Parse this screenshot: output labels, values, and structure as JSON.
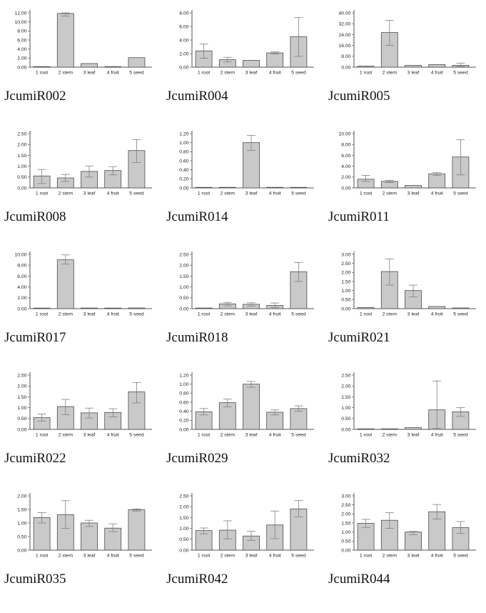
{
  "page": {
    "background": "#ffffff"
  },
  "colors": {
    "bar_fill": "#c9c9c9",
    "bar_border": "#4d4d4d",
    "error_bar": "#808080",
    "axis": "#555555",
    "tick_text": "#222222",
    "title_text": "#111111"
  },
  "chart_data": [
    {
      "type": "bar",
      "title": "JcumiR002",
      "categories": [
        "1 root",
        "2 stem",
        "3 leaf",
        "4 fruit",
        "5 seed"
      ],
      "values": [
        0.05,
        11.85,
        0.8,
        0.05,
        2.1
      ],
      "err_low": [
        null,
        11.3,
        null,
        null,
        null
      ],
      "err_high": [
        null,
        12.0,
        null,
        null,
        null
      ],
      "ylim": [
        0,
        12.0
      ],
      "ytick": 2.0
    },
    {
      "type": "bar",
      "title": "JcumiR004",
      "categories": [
        "1 root",
        "2 stem",
        "3 leaf",
        "4 fruit",
        "5 seed"
      ],
      "values": [
        2.4,
        1.1,
        1.0,
        2.1,
        4.5
      ],
      "err_low": [
        1.3,
        0.75,
        null,
        1.95,
        1.6
      ],
      "err_high": [
        3.4,
        1.45,
        null,
        2.25,
        7.3
      ],
      "ylim": [
        0,
        8.0
      ],
      "ytick": 2.0
    },
    {
      "type": "bar",
      "title": "JcumiR005",
      "categories": [
        "1 root",
        "2 stem",
        "3 leaf",
        "4 fruit",
        "5 seed"
      ],
      "values": [
        0.8,
        25.5,
        1.3,
        1.9,
        1.3
      ],
      "err_low": [
        null,
        16.0,
        null,
        null,
        0.5
      ],
      "err_high": [
        null,
        34.5,
        null,
        null,
        3.0
      ],
      "ylim": [
        0,
        40.0
      ],
      "ytick": 8.0
    },
    {
      "type": "bar",
      "title": "JcumiR008",
      "categories": [
        "1 root",
        "2 stem",
        "3 leaf",
        "4 fruit",
        "5 seed"
      ],
      "values": [
        0.55,
        0.46,
        0.76,
        0.8,
        1.72
      ],
      "err_low": [
        0.2,
        0.3,
        0.5,
        0.6,
        1.17
      ],
      "err_high": [
        0.85,
        0.62,
        1.01,
        0.98,
        2.22
      ],
      "ylim": [
        0,
        2.5
      ],
      "ytick": 0.5
    },
    {
      "type": "bar",
      "title": "JcumiR014",
      "categories": [
        "1 root",
        "2 stem",
        "3 leaf",
        "4 fruit",
        "5 seed"
      ],
      "values": [
        0.01,
        0.01,
        1.0,
        0.01,
        0.01
      ],
      "err_low": [
        null,
        null,
        0.83,
        null,
        null
      ],
      "err_high": [
        null,
        null,
        1.16,
        null,
        null
      ],
      "ylim": [
        0,
        1.2
      ],
      "ytick": 0.2
    },
    {
      "type": "bar",
      "title": "JcumiR011",
      "categories": [
        "1 root",
        "2 stem",
        "3 leaf",
        "4 fruit",
        "5 seed"
      ],
      "values": [
        1.6,
        1.2,
        0.45,
        2.6,
        5.7
      ],
      "err_low": [
        1.2,
        1.0,
        null,
        2.3,
        2.4
      ],
      "err_high": [
        2.3,
        1.4,
        null,
        2.85,
        8.9
      ],
      "ylim": [
        0,
        10.0
      ],
      "ytick": 2.0
    },
    {
      "type": "bar",
      "title": "JcumiR017",
      "categories": [
        "1 root",
        "2 stem",
        "3 leaf",
        "4 fruit",
        "5 seed"
      ],
      "values": [
        0.03,
        9.0,
        0.12,
        0.03,
        0.13
      ],
      "err_low": [
        null,
        8.2,
        null,
        null,
        null
      ],
      "err_high": [
        null,
        9.9,
        null,
        null,
        null
      ],
      "ylim": [
        0,
        10.0
      ],
      "ytick": 2.0
    },
    {
      "type": "bar",
      "title": "JcumiR018",
      "categories": [
        "1 root",
        "2 stem",
        "3 leaf",
        "4 fruit",
        "5 seed"
      ],
      "values": [
        0.03,
        0.22,
        0.2,
        0.15,
        1.7
      ],
      "err_low": [
        null,
        0.13,
        0.12,
        0.05,
        1.25
      ],
      "err_high": [
        null,
        0.29,
        0.27,
        0.26,
        2.13
      ],
      "ylim": [
        0,
        2.5
      ],
      "ytick": 0.5
    },
    {
      "type": "bar",
      "title": "JcumiR021",
      "categories": [
        "1 root",
        "2 stem",
        "3 leaf",
        "4 fruit",
        "5 seed"
      ],
      "values": [
        0.06,
        2.05,
        1.0,
        0.12,
        0.04
      ],
      "err_low": [
        null,
        1.3,
        0.65,
        null,
        null
      ],
      "err_high": [
        null,
        2.75,
        1.3,
        null,
        null
      ],
      "ylim": [
        0,
        3.0
      ],
      "ytick": 0.5
    },
    {
      "type": "bar",
      "title": "JcumiR022",
      "categories": [
        "1 root",
        "2 stem",
        "3 leaf",
        "4 fruit",
        "5 seed"
      ],
      "values": [
        0.54,
        1.05,
        0.76,
        0.78,
        1.73
      ],
      "err_low": [
        0.38,
        0.68,
        0.52,
        0.58,
        1.22
      ],
      "err_high": [
        0.71,
        1.38,
        0.98,
        0.95,
        2.16
      ],
      "ylim": [
        0,
        2.5
      ],
      "ytick": 0.5
    },
    {
      "type": "bar",
      "title": "JcumiR029",
      "categories": [
        "1 root",
        "2 stem",
        "3 leaf",
        "4 fruit",
        "5 seed"
      ],
      "values": [
        0.39,
        0.59,
        1.0,
        0.38,
        0.46
      ],
      "err_low": [
        0.32,
        0.5,
        0.93,
        0.32,
        0.4
      ],
      "err_high": [
        0.46,
        0.67,
        1.06,
        0.43,
        0.52
      ],
      "ylim": [
        0,
        1.2
      ],
      "ytick": 0.2
    },
    {
      "type": "bar",
      "title": "JcumiR032",
      "categories": [
        "1 root",
        "2 stem",
        "3 leaf",
        "4 fruit",
        "5 seed"
      ],
      "values": [
        0.01,
        0.01,
        0.08,
        0.9,
        0.81
      ],
      "err_low": [
        null,
        null,
        null,
        0.05,
        0.6
      ],
      "err_high": [
        null,
        null,
        null,
        2.23,
        1.0
      ],
      "ylim": [
        0,
        2.5
      ],
      "ytick": 0.5
    },
    {
      "type": "bar",
      "title": "JcumiR035",
      "categories": [
        "1 root",
        "2 stem",
        "3 leaf",
        "4 fruit",
        "5 seed"
      ],
      "values": [
        1.2,
        1.31,
        1.0,
        0.81,
        1.49
      ],
      "err_low": [
        1.0,
        0.8,
        0.87,
        0.68,
        1.44
      ],
      "err_high": [
        1.38,
        1.82,
        1.1,
        0.97,
        1.52
      ],
      "ylim": [
        0,
        2.0
      ],
      "ytick": 0.5
    },
    {
      "type": "bar",
      "title": "JcumiR042",
      "categories": [
        "1 root",
        "2 stem",
        "3 leaf",
        "4 fruit",
        "5 seed"
      ],
      "values": [
        0.9,
        0.92,
        0.65,
        1.16,
        1.9
      ],
      "err_low": [
        0.75,
        0.52,
        0.45,
        0.53,
        1.53
      ],
      "err_high": [
        1.02,
        1.35,
        0.87,
        1.8,
        2.28
      ],
      "ylim": [
        0,
        2.5
      ],
      "ytick": 0.5
    },
    {
      "type": "bar",
      "title": "JcumiR044",
      "categories": [
        "1 root",
        "2 stem",
        "3 leaf",
        "4 fruit",
        "5 seed"
      ],
      "values": [
        1.48,
        1.65,
        1.0,
        2.12,
        1.25
      ],
      "err_low": [
        1.25,
        1.2,
        0.85,
        1.72,
        0.92
      ],
      "err_high": [
        1.7,
        2.07,
        1.03,
        2.52,
        1.58
      ],
      "ylim": [
        0,
        3.0
      ],
      "ytick": 0.5
    }
  ]
}
